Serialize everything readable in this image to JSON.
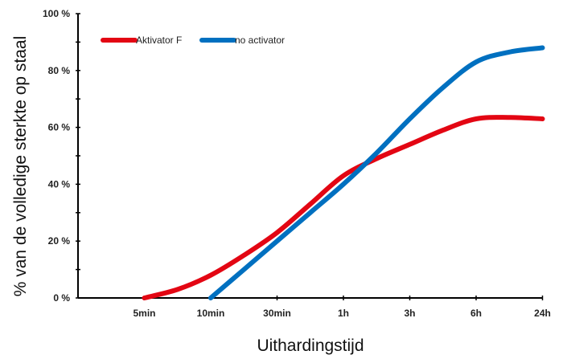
{
  "chart_data": {
    "type": "line",
    "title": "",
    "xlabel": "Uithardingstijd",
    "ylabel": "% van de volledige sterkte op staal",
    "categories": [
      "",
      "5min",
      "10min",
      "30min",
      "1h",
      "3h",
      "6h",
      "24h"
    ],
    "ylim": [
      0,
      100
    ],
    "yticks": [
      0,
      20,
      40,
      60,
      80,
      100
    ],
    "ytick_labels": [
      "0 %",
      "20 %",
      "40 %",
      "60 %",
      "80 %",
      "100 %"
    ],
    "grid": false,
    "legend_position": "top-left",
    "series": [
      {
        "name": "Aktivator F",
        "color": "#e30613",
        "points": [
          [
            1.0,
            0
          ],
          [
            1.5,
            3
          ],
          [
            2.0,
            8
          ],
          [
            2.5,
            15
          ],
          [
            3.0,
            23
          ],
          [
            3.5,
            33
          ],
          [
            4.0,
            43
          ],
          [
            4.5,
            49
          ],
          [
            5.0,
            54
          ],
          [
            5.5,
            59
          ],
          [
            6.0,
            63
          ],
          [
            6.5,
            63.5
          ],
          [
            7.0,
            63
          ]
        ]
      },
      {
        "name": "no activator",
        "color": "#0070c0",
        "points": [
          [
            2.0,
            0
          ],
          [
            2.5,
            10
          ],
          [
            3.0,
            20
          ],
          [
            3.5,
            30
          ],
          [
            4.0,
            40
          ],
          [
            4.5,
            51
          ],
          [
            5.0,
            63
          ],
          [
            5.5,
            74
          ],
          [
            6.0,
            83
          ],
          [
            6.5,
            86.5
          ],
          [
            7.0,
            88
          ]
        ]
      }
    ]
  }
}
